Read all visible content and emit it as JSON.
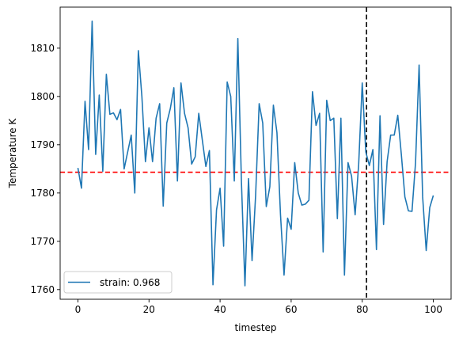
{
  "chart_data": {
    "type": "line",
    "title": "",
    "xlabel": "timestep",
    "ylabel": "Temperature K",
    "xlim": [
      -5,
      105
    ],
    "ylim": [
      1758,
      1818.5
    ],
    "xticks": [
      0,
      20,
      40,
      60,
      80,
      100
    ],
    "yticks": [
      1760,
      1770,
      1780,
      1790,
      1800,
      1810
    ],
    "grid": false,
    "legend": {
      "placement": "lower-left"
    },
    "series": [
      {
        "name": "strain: 0.968",
        "color": "#1f77b4",
        "x": [
          0,
          1,
          2,
          3,
          4,
          5,
          6,
          7,
          8,
          9,
          10,
          11,
          12,
          13,
          14,
          15,
          16,
          17,
          18,
          19,
          20,
          21,
          22,
          23,
          24,
          25,
          26,
          27,
          28,
          29,
          30,
          31,
          32,
          33,
          34,
          35,
          36,
          37,
          38,
          39,
          40,
          41,
          42,
          43,
          44,
          45,
          46,
          47,
          48,
          49,
          50,
          51,
          52,
          53,
          54,
          55,
          56,
          57,
          58,
          59,
          60,
          61,
          62,
          63,
          64,
          65,
          66,
          67,
          68,
          69,
          70,
          71,
          72,
          73,
          74,
          75,
          76,
          77,
          78,
          79,
          80,
          81,
          82,
          83,
          84,
          85,
          86,
          87,
          88,
          89,
          90,
          91,
          92,
          93,
          94,
          95,
          96,
          97,
          98,
          99,
          100
        ],
        "values": [
          1785.2,
          1781,
          1799,
          1789,
          1815.6,
          1788,
          1800.3,
          1784.5,
          1804.6,
          1796.3,
          1796.6,
          1795.2,
          1797.3,
          1785,
          1788.5,
          1792,
          1780,
          1809.5,
          1800,
          1786.5,
          1793.5,
          1786.5,
          1795.5,
          1798.5,
          1777.3,
          1794.5,
          1797.5,
          1801.8,
          1782.5,
          1802.8,
          1796.5,
          1793.5,
          1786,
          1787.5,
          1796.5,
          1791,
          1785.5,
          1788.8,
          1761,
          1776.5,
          1781,
          1769,
          1803,
          1800,
          1782.5,
          1812,
          1782.5,
          1760.8,
          1783,
          1766,
          1779.5,
          1798.5,
          1794.5,
          1777.2,
          1781.3,
          1798.2,
          1792.5,
          1775.5,
          1763,
          1774.8,
          1772.5,
          1786.3,
          1780,
          1777.5,
          1777.7,
          1778.5,
          1801,
          1794,
          1796.5,
          1767.8,
          1799.2,
          1795,
          1795.5,
          1774.7,
          1795.5,
          1763,
          1786.3,
          1783.5,
          1775.5,
          1786,
          1802.8,
          1788.5,
          1785.7,
          1789,
          1768.3,
          1796,
          1773.5,
          1786.5,
          1792,
          1792,
          1796.1,
          1788,
          1779.2,
          1776.3,
          1776.2,
          1786.3,
          1806.5,
          1779.2,
          1768.1,
          1777,
          1779.5
        ]
      }
    ],
    "reference_lines": [
      {
        "orientation": "horizontal",
        "value": 1784.3,
        "color": "#ff0000",
        "style": "dashed"
      },
      {
        "orientation": "vertical",
        "value": 81.2,
        "color": "#000000",
        "style": "dashed"
      }
    ]
  }
}
